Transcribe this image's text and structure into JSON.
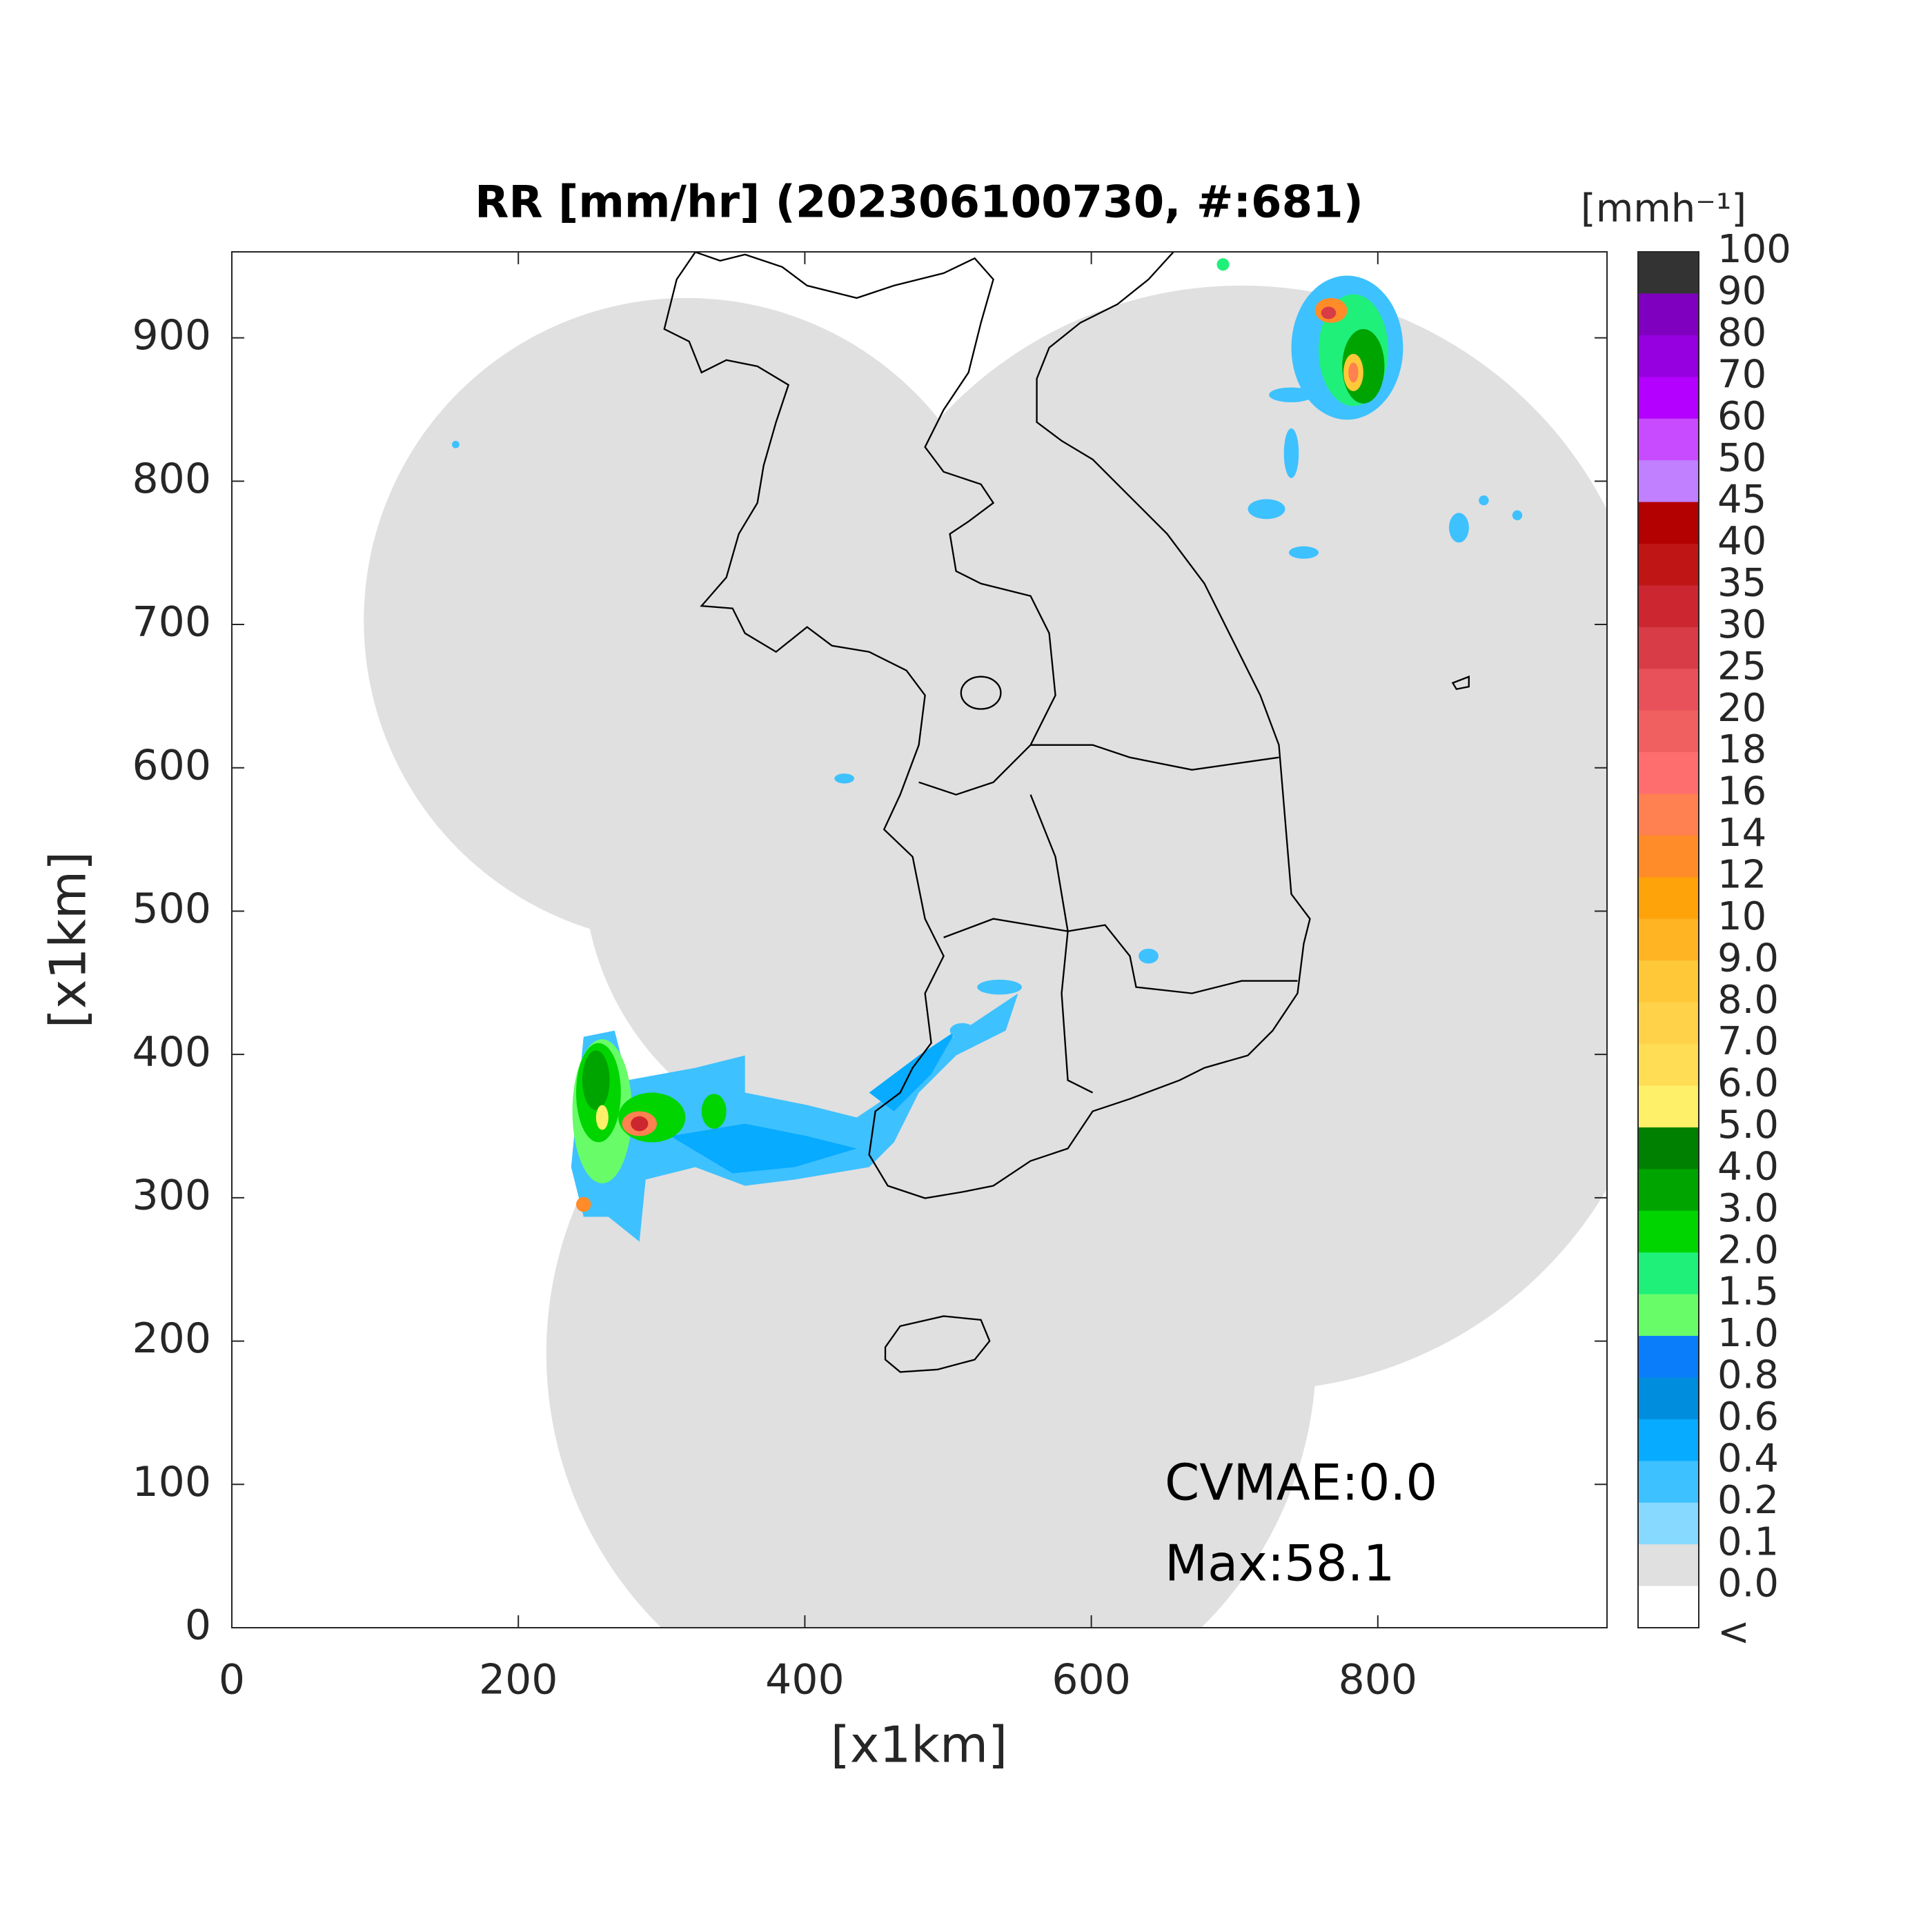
{
  "chart_data": {
    "type": "map",
    "title": "RR [mm/hr] (202306100730, #:681)",
    "xlabel": "[x1km]",
    "ylabel": "[x1km]",
    "xlim": [
      0,
      960
    ],
    "ylim": [
      0,
      960
    ],
    "xticks": [
      0,
      200,
      400,
      600,
      800
    ],
    "yticks": [
      0,
      100,
      200,
      300,
      400,
      500,
      600,
      700,
      800,
      900
    ],
    "annotations": [
      "CVMAE:0.0",
      "Max:58.1"
    ],
    "colorbar": {
      "title": "[mmh⁻¹]",
      "levels": [
        100,
        90,
        80,
        70,
        60,
        50,
        45,
        40,
        35,
        30,
        25,
        20,
        18,
        16,
        14,
        12,
        10,
        {
          "value": 9,
          "label": "9.0"
        },
        {
          "value": 8,
          "label": "8.0"
        },
        {
          "value": 7,
          "label": "7.0"
        },
        {
          "value": 6,
          "label": "6.0"
        },
        {
          "value": 5,
          "label": "5.0"
        },
        {
          "value": 4,
          "label": "4.0"
        },
        {
          "value": 3,
          "label": "3.0"
        },
        {
          "value": 2,
          "label": "2.0"
        },
        1.5,
        {
          "value": 1,
          "label": "1.0"
        },
        0.8,
        0.6,
        0.4,
        0.2,
        0.1,
        {
          "value": 0,
          "label": "0.0"
        }
      ],
      "under_label": "<",
      "colors": [
        "#333333",
        "#7f00bf",
        "#9600e0",
        "#b300ff",
        "#c84bff",
        "#c080ff",
        "#b30000",
        "#bf1515",
        "#cc2630",
        "#d83c46",
        "#e8505a",
        "#f06060",
        "#ff6e6e",
        "#ff8050",
        "#ff8c28",
        "#ffa30a",
        "#ffb424",
        "#ffc838",
        "#ffd24a",
        "#ffdd55",
        "#fff06a",
        "#008000",
        "#00a400",
        "#00d500",
        "#1ff07a",
        "#69fc69",
        "#0a7dfa",
        "#008dde",
        "#07abff",
        "#3ec1ff",
        "#87d9ff",
        "#e0e0e0",
        "#ffffff"
      ]
    }
  }
}
